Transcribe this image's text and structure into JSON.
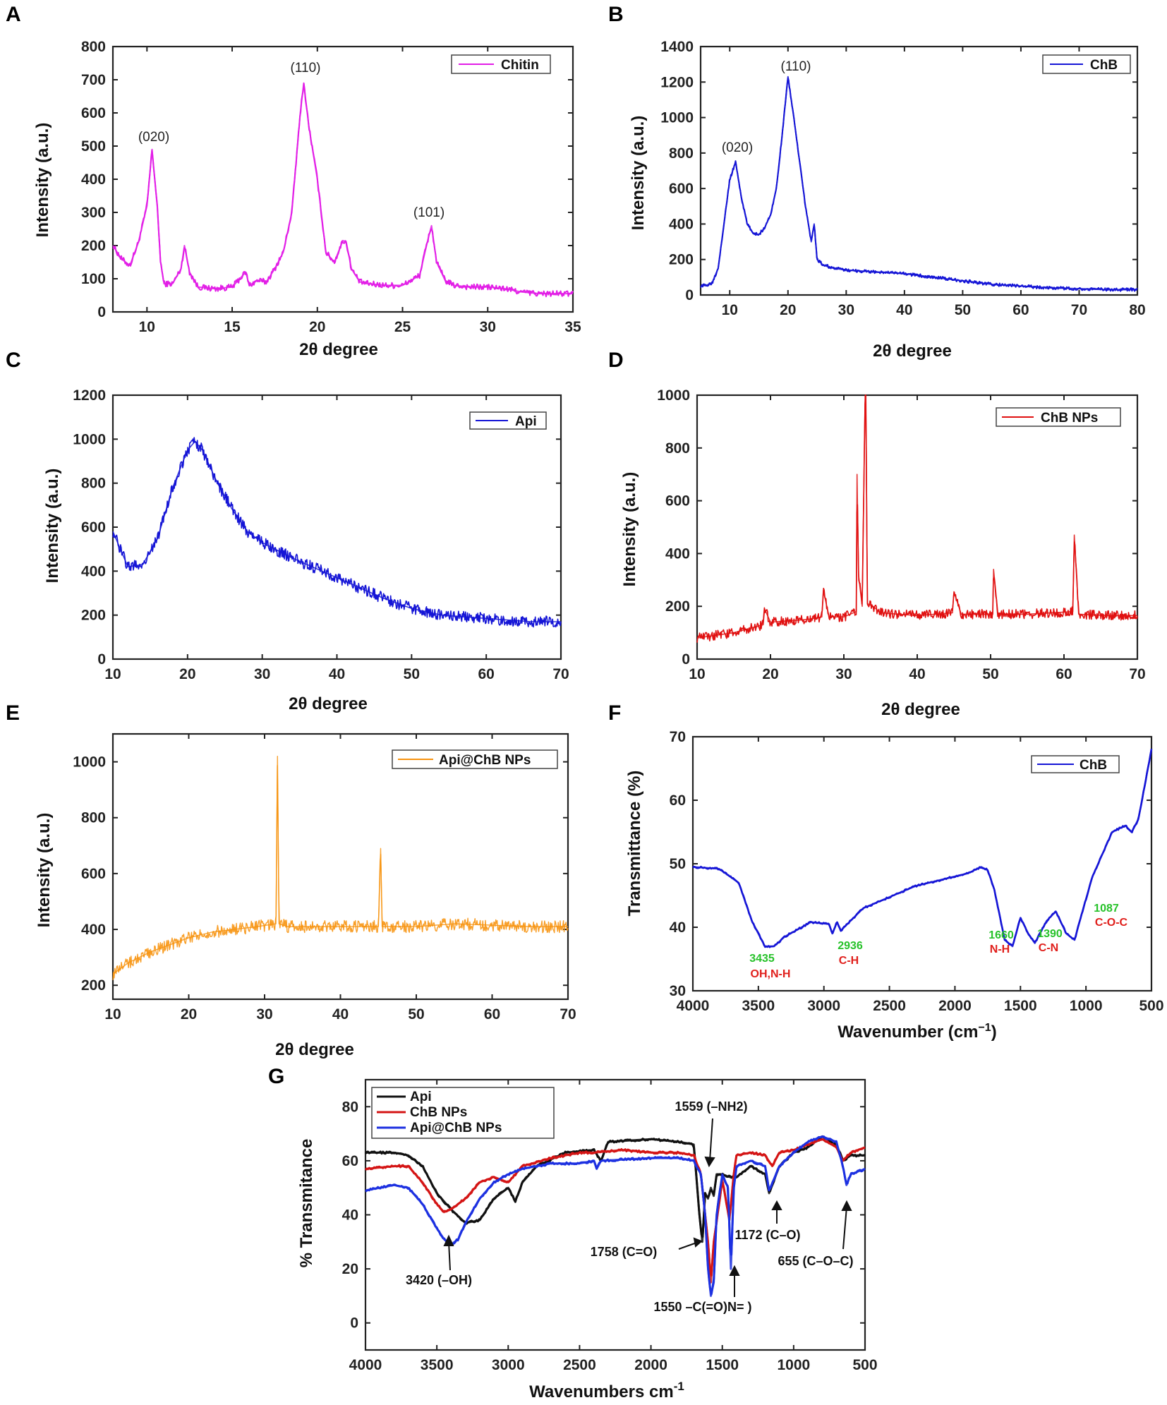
{
  "chart_data": [
    {
      "panel": "A",
      "type": "line",
      "xlabel": "2θ degree",
      "ylabel": "Intensity (a.u.)",
      "xlim": [
        8,
        35
      ],
      "ylim": [
        0,
        800
      ],
      "xticks": [
        "10",
        "15",
        "20",
        "25",
        "30",
        "35"
      ],
      "yticks": [
        "0",
        "100",
        "200",
        "300",
        "400",
        "500",
        "600",
        "700",
        "800"
      ],
      "legend": "Chitin",
      "legend_pos": "top-right",
      "color": "#e21ee6",
      "series": [
        {
          "name": "Chitin",
          "x": [
            8,
            8.5,
            9,
            9.5,
            10,
            10.3,
            10.6,
            10.8,
            11,
            11.5,
            12,
            12.2,
            12.5,
            13,
            14,
            15,
            15.8,
            16,
            16.5,
            17,
            17.5,
            18,
            18.5,
            19,
            19.2,
            19.5,
            20,
            20.5,
            21,
            21.5,
            21.7,
            22,
            22.5,
            23,
            24,
            25,
            26,
            26.5,
            26.7,
            27,
            27.5,
            28,
            29,
            30,
            31,
            32,
            33,
            34,
            35
          ],
          "y": [
            200,
            160,
            140,
            210,
            320,
            490,
            320,
            150,
            85,
            85,
            130,
            200,
            120,
            75,
            70,
            75,
            120,
            80,
            95,
            90,
            130,
            180,
            300,
            600,
            690,
            560,
            400,
            180,
            150,
            215,
            210,
            130,
            90,
            85,
            80,
            80,
            110,
            220,
            260,
            150,
            95,
            80,
            75,
            75,
            70,
            60,
            55,
            55,
            55
          ]
        }
      ],
      "annotations": [
        "(020)",
        "(110)",
        "(101)"
      ]
    },
    {
      "panel": "B",
      "type": "line",
      "xlabel": "2θ degree",
      "ylabel": "Intensity (a.u.)",
      "xlim": [
        5,
        80
      ],
      "ylim": [
        0,
        1400
      ],
      "xticks": [
        "10",
        "20",
        "30",
        "40",
        "50",
        "60",
        "70",
        "80"
      ],
      "yticks": [
        "0",
        "200",
        "400",
        "600",
        "800",
        "1000",
        "1200",
        "1400"
      ],
      "legend": "ChB",
      "legend_pos": "top-right",
      "color": "#1515d6",
      "series": [
        {
          "name": "ChB",
          "x": [
            5,
            6,
            7,
            8,
            9,
            10,
            11,
            12,
            13,
            14,
            15,
            16,
            17,
            18,
            19,
            20,
            21,
            22,
            23,
            24,
            24.5,
            25,
            26,
            28,
            30,
            35,
            40,
            45,
            50,
            55,
            60,
            65,
            70,
            75,
            80
          ],
          "y": [
            50,
            55,
            70,
            150,
            400,
            650,
            750,
            550,
            400,
            350,
            340,
            380,
            450,
            600,
            900,
            1230,
            1000,
            750,
            500,
            300,
            400,
            200,
            170,
            150,
            140,
            130,
            120,
            100,
            80,
            60,
            50,
            40,
            35,
            30,
            30
          ]
        }
      ],
      "annotations": [
        "(020)",
        "(110)"
      ]
    },
    {
      "panel": "C",
      "type": "line",
      "xlabel": "2θ degree",
      "ylabel": "Intensity (a.u.)",
      "xlim": [
        10,
        70
      ],
      "ylim": [
        0,
        1200
      ],
      "xticks": [
        "10",
        "20",
        "30",
        "40",
        "50",
        "60",
        "70"
      ],
      "yticks": [
        "0",
        "200",
        "400",
        "600",
        "800",
        "1000",
        "1200"
      ],
      "legend": "Api",
      "legend_pos": "top-right",
      "color": "#1515d6",
      "series": [
        {
          "name": "Api",
          "x": [
            10,
            12,
            14,
            16,
            18,
            20,
            21,
            22,
            24,
            26,
            28,
            30,
            34,
            38,
            42,
            46,
            50,
            54,
            58,
            62,
            66,
            70
          ],
          "y": [
            580,
            420,
            430,
            550,
            780,
            950,
            990,
            950,
            800,
            680,
            580,
            530,
            460,
            400,
            340,
            280,
            230,
            200,
            190,
            180,
            170,
            170
          ]
        }
      ]
    },
    {
      "panel": "D",
      "type": "line",
      "xlabel": "2θ degree",
      "ylabel": "Intensity (a.u.)",
      "xlim": [
        10,
        70
      ],
      "ylim": [
        0,
        1000
      ],
      "xticks": [
        "10",
        "20",
        "30",
        "40",
        "50",
        "60",
        "70"
      ],
      "yticks": [
        "0",
        "200",
        "400",
        "600",
        "800",
        "1000"
      ],
      "legend": "ChB NPs",
      "legend_pos": "top-right",
      "color": "#e01010",
      "series": [
        {
          "name": "ChB NPs",
          "x": [
            10,
            15,
            19,
            19.2,
            20,
            25,
            27,
            27.2,
            28,
            30,
            31.7,
            31.8,
            32,
            32.5,
            32.9,
            33,
            33.2,
            34,
            35,
            40,
            44.8,
            45,
            46,
            50.3,
            50.4,
            51,
            55,
            61.2,
            61.4,
            62,
            66,
            70
          ],
          "y": [
            80,
            100,
            130,
            190,
            140,
            150,
            160,
            260,
            160,
            160,
            180,
            700,
            320,
            200,
            1000,
            1000,
            210,
            200,
            175,
            165,
            175,
            255,
            170,
            170,
            340,
            170,
            170,
            180,
            470,
            170,
            165,
            165
          ]
        }
      ]
    },
    {
      "panel": "E",
      "type": "line",
      "xlabel": "2θ degree",
      "ylabel": "Intensity (a.u.)",
      "xlim": [
        10,
        70
      ],
      "ylim": [
        150,
        1100
      ],
      "xticks": [
        "10",
        "20",
        "30",
        "40",
        "50",
        "60",
        "70"
      ],
      "yticks": [
        "200",
        "400",
        "600",
        "800",
        "1000"
      ],
      "legend": "Api@ChB NPs",
      "legend_pos": "top-right",
      "color": "#f7930f",
      "series": [
        {
          "name": "Api@ChB NPs",
          "x": [
            10,
            12,
            15,
            18,
            20,
            23,
            26,
            29,
            31.5,
            31.7,
            31.9,
            33,
            36,
            40,
            45,
            45.3,
            45.5,
            46,
            50,
            55,
            60,
            65,
            70
          ],
          "y": [
            240,
            280,
            320,
            350,
            370,
            390,
            400,
            410,
            420,
            1020,
            420,
            410,
            410,
            410,
            410,
            690,
            410,
            410,
            410,
            420,
            415,
            410,
            410
          ]
        }
      ]
    },
    {
      "panel": "F",
      "type": "line",
      "xlabel": "Wavenumber (cm⁻¹)",
      "ylabel": "Transmittance (%)",
      "xlim": [
        4000,
        500
      ],
      "ylim": [
        30,
        70
      ],
      "xticks": [
        "4000",
        "3500",
        "3000",
        "2500",
        "2000",
        "1500",
        "1000",
        "500"
      ],
      "yticks": [
        "30",
        "40",
        "50",
        "60",
        "70"
      ],
      "legend": "ChB",
      "legend_pos": "top-right",
      "color": "#1515d6",
      "series": [
        {
          "name": "ChB",
          "x": [
            4000,
            3800,
            3650,
            3550,
            3450,
            3380,
            3300,
            3100,
            2960,
            2936,
            2900,
            2870,
            2700,
            2300,
            2100,
            1900,
            1800,
            1750,
            1700,
            1660,
            1620,
            1560,
            1500,
            1440,
            1390,
            1300,
            1230,
            1150,
            1087,
            1020,
            950,
            800,
            700,
            650,
            600,
            500
          ],
          "y": [
            49.5,
            49.2,
            47,
            41,
            37,
            37,
            38.5,
            40.8,
            40.5,
            39,
            40.8,
            39.5,
            43,
            46.5,
            47.5,
            48.5,
            49.5,
            49,
            46,
            42,
            38,
            37,
            41.5,
            39,
            37.5,
            41,
            42.5,
            39,
            38,
            43,
            48,
            55,
            56,
            55,
            57,
            68
          ]
        }
      ],
      "annotations": [
        {
          "value": "3435",
          "group": "OH,N-H"
        },
        {
          "value": "2936",
          "group": "C-H"
        },
        {
          "value": "1660",
          "group": "N-H"
        },
        {
          "value": "1390",
          "group": "C-N"
        },
        {
          "value": "1087",
          "group": "C-O-C"
        }
      ]
    },
    {
      "panel": "G",
      "type": "line",
      "xlabel": "Wavenumbers cm⁻¹",
      "ylabel": "% Transmitance",
      "xlim": [
        4000,
        500
      ],
      "ylim": [
        -10,
        90
      ],
      "xticks": [
        "4000",
        "3500",
        "3000",
        "2500",
        "2000",
        "1500",
        "1000",
        "500"
      ],
      "yticks": [
        "0",
        "20",
        "40",
        "60",
        "80"
      ],
      "legend_pos": "top-left",
      "series": [
        {
          "name": "Api",
          "color": "#111111",
          "x": [
            4000,
            3800,
            3700,
            3600,
            3500,
            3400,
            3300,
            3200,
            3100,
            3000,
            2950,
            2900,
            2800,
            2600,
            2400,
            2350,
            2300,
            2000,
            1800,
            1700,
            1660,
            1640,
            1620,
            1600,
            1580,
            1560,
            1540,
            1500,
            1450,
            1400,
            1300,
            1200,
            1172,
            1100,
            1000,
            900,
            800,
            700,
            655,
            600,
            500
          ],
          "y": [
            63,
            63,
            62,
            58,
            48,
            42,
            37,
            38,
            46,
            50,
            45,
            52,
            58,
            63,
            64,
            60,
            67,
            68,
            67,
            66,
            40,
            30,
            48,
            46,
            50,
            47,
            55,
            55,
            54,
            54,
            58,
            55,
            48,
            58,
            63,
            65,
            69,
            66,
            60,
            62,
            62
          ]
        },
        {
          "name": "ChB NPs",
          "color": "#d41414",
          "x": [
            4000,
            3800,
            3700,
            3600,
            3500,
            3450,
            3400,
            3300,
            3200,
            3100,
            3000,
            2900,
            2700,
            2500,
            2400,
            2200,
            2000,
            1800,
            1700,
            1650,
            1600,
            1580,
            1560,
            1520,
            1500,
            1450,
            1420,
            1400,
            1300,
            1200,
            1150,
            1100,
            1000,
            900,
            800,
            700,
            655,
            600,
            500
          ],
          "y": [
            57,
            58,
            58,
            52,
            44,
            41,
            42,
            46,
            52,
            54,
            52,
            58,
            61,
            63,
            63,
            64,
            63,
            63,
            62,
            55,
            30,
            15,
            30,
            45,
            53,
            38,
            55,
            62,
            63,
            62,
            58,
            63,
            64,
            66,
            68,
            65,
            60,
            63,
            65
          ]
        },
        {
          "name": "Api@ChB NPs",
          "color": "#1c30e0",
          "x": [
            4000,
            3800,
            3700,
            3600,
            3500,
            3450,
            3400,
            3350,
            3300,
            3200,
            3100,
            3000,
            2900,
            2700,
            2500,
            2400,
            2380,
            2350,
            2000,
            1800,
            1700,
            1650,
            1620,
            1600,
            1580,
            1560,
            1540,
            1500,
            1460,
            1440,
            1420,
            1400,
            1300,
            1200,
            1172,
            1100,
            1000,
            900,
            800,
            700,
            655,
            630,
            600,
            500
          ],
          "y": [
            49,
            51,
            50,
            44,
            35,
            31,
            29,
            31,
            37,
            46,
            52,
            55,
            57,
            59,
            59,
            60,
            57,
            60,
            61,
            61,
            60,
            55,
            40,
            20,
            10,
            15,
            40,
            55,
            50,
            20,
            50,
            58,
            60,
            58,
            49,
            58,
            63,
            67,
            69,
            67,
            58,
            51,
            55,
            57
          ]
        }
      ],
      "annotations": [
        "1559 (–NH2)",
        "1758 (C=O)",
        "3420 (–OH)",
        "1172 (C–O)",
        "655 (C–O–C)",
        "1550 –C(=O)N= )"
      ]
    }
  ],
  "figure": {
    "panel_labels": [
      "A",
      "B",
      "C",
      "D",
      "E",
      "F",
      "G"
    ],
    "panelA": {
      "xlabel": "2θ degree",
      "ylabel": "Intensity (a.u.)",
      "legend": "Chitin",
      "peaks": [
        "(020)",
        "(110)",
        "(101)"
      ]
    },
    "panelB": {
      "xlabel": "2θ degree",
      "ylabel": "Intensity (a.u.)",
      "legend": "ChB",
      "peaks": [
        "(020)",
        "(110)"
      ]
    },
    "panelC": {
      "xlabel": "2θ degree",
      "ylabel": "Intensity (a.u.)",
      "legend": "Api"
    },
    "panelD": {
      "xlabel": "2θ degree",
      "ylabel": "Intensity (a.u.)",
      "legend": "ChB NPs"
    },
    "panelE": {
      "xlabel": "2θ degree",
      "ylabel": "Intensity (a.u.)",
      "legend": "Api@ChB NPs"
    },
    "panelF": {
      "xlabel": "Wavenumber (cm",
      "xlabel_sup": "−1",
      "xlabel_end": ")",
      "ylabel": "Transmittance (%)",
      "legend": "ChB",
      "ann": {
        "a1": "3435",
        "a1g": "OH,N-H",
        "a2": "2936",
        "a2g": "C-H",
        "a3": "1660",
        "a3g": "N-H",
        "a4": "1390",
        "a4g": "C-N",
        "a5": "1087",
        "a5g": "C-O-C"
      }
    },
    "panelG": {
      "xlabel": "Wavenumbers cm",
      "xlabel_sup": "-1",
      "ylabel": "% Transmitance",
      "legend": [
        "Api",
        "ChB NPs",
        "Api@ChB NPs"
      ],
      "ann": {
        "nh2": "1559 (–NH2)",
        "co": "1758 (C=O)",
        "oh": "3420 (–OH)",
        "co2": "1172 (C–O)",
        "coc": "655 (C–O–C)",
        "amide": "1550 –C(=O)N= )"
      }
    }
  }
}
